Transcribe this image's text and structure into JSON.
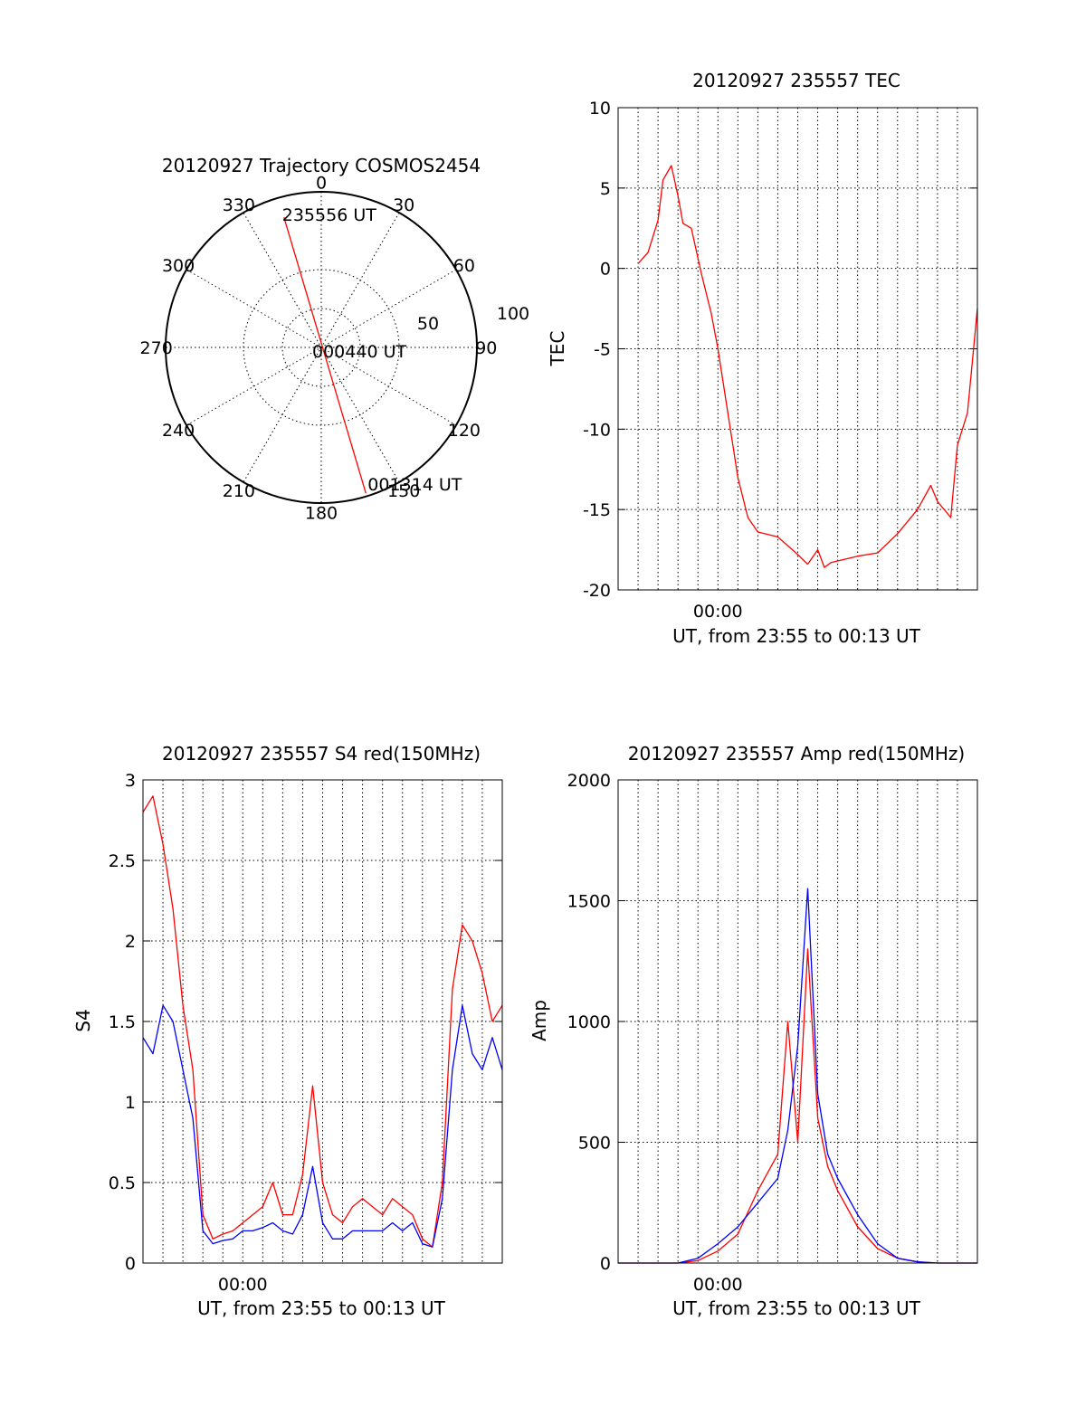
{
  "colors": {
    "red": "#ff0000",
    "blue": "#0000ff",
    "axis": "#000000",
    "grid": "#000000"
  },
  "chart_data": [
    {
      "id": "trajectory",
      "type": "polar",
      "title": "20120927 Trajectory COSMOS2454",
      "azimuth_labels": [
        "0",
        "30",
        "60",
        "90",
        "120",
        "150",
        "180",
        "210",
        "240",
        "270",
        "300",
        "330"
      ],
      "radius_labels": [
        "50",
        "100"
      ],
      "grid": true,
      "track": {
        "start": {
          "azimuth": 344,
          "zenith_angle": 87,
          "label": "235556 UT"
        },
        "middle": {
          "label": "000440 UT"
        },
        "end": {
          "azimuth": 163,
          "zenith_angle": 98,
          "label": "001314 UT"
        }
      }
    },
    {
      "id": "tec",
      "type": "line",
      "title": "20120927 235557 TEC",
      "ylabel": "TEC",
      "xlabel": "UT, from 23:55 to 00:13 UT",
      "x_tick_labels": [
        "00:00"
      ],
      "y_tick_labels": [
        "10",
        "5",
        "0",
        "-5",
        "-10",
        "-15",
        "-20"
      ],
      "xlim": [
        "23:55",
        "00:13"
      ],
      "ylim": [
        -20,
        10
      ],
      "grid": true,
      "series": [
        {
          "color": "#ff0000",
          "x": [
            "23:56",
            "23:56:30",
            "23:57",
            "23:57:15",
            "23:57:40",
            "23:58",
            "23:58:15",
            "23:58:40",
            "23:59:10",
            "23:59:40",
            "00:00",
            "00:00:30",
            "00:01",
            "00:01:30",
            "00:02",
            "00:03",
            "00:04",
            "00:04:30",
            "00:05",
            "00:05:20",
            "00:05:40",
            "00:06",
            "00:07",
            "00:08",
            "00:09",
            "00:10",
            "00:10:40",
            "00:11",
            "00:11:40",
            "00:12",
            "00:12:30",
            "00:13"
          ],
          "y": [
            0.3,
            1.0,
            3.0,
            5.5,
            6.4,
            4.5,
            2.8,
            2.5,
            -0.3,
            -2.8,
            -5.0,
            -9.0,
            -13.0,
            -15.5,
            -16.4,
            -16.7,
            -17.8,
            -18.4,
            -17.5,
            -18.6,
            -18.3,
            -18.2,
            -17.9,
            -17.7,
            -16.5,
            -15.0,
            -13.5,
            -14.5,
            -15.5,
            -11.0,
            -9.0,
            -2.5
          ]
        }
      ]
    },
    {
      "id": "s4",
      "type": "line",
      "title": "20120927 235557 S4 red(150MHz)",
      "ylabel": "S4",
      "xlabel": "UT, from 23:55 to 00:13 UT",
      "x_tick_labels": [
        "00:00"
      ],
      "y_tick_labels": [
        "3",
        "2.5",
        "2",
        "1.5",
        "1",
        "0.5",
        "0"
      ],
      "xlim": [
        "23:55",
        "00:13"
      ],
      "ylim": [
        0,
        3
      ],
      "grid": true,
      "series": [
        {
          "color": "#ff0000",
          "x": [
            "23:55",
            "23:55:30",
            "23:56",
            "23:56:30",
            "23:57",
            "23:57:30",
            "23:58",
            "23:58:30",
            "23:59",
            "23:59:30",
            "00:00",
            "00:00:30",
            "00:01",
            "00:01:30",
            "00:02",
            "00:02:30",
            "00:03",
            "00:03:30",
            "00:04",
            "00:04:30",
            "00:05",
            "00:05:30",
            "00:06",
            "00:06:30",
            "00:07",
            "00:07:30",
            "00:08",
            "00:08:30",
            "00:09",
            "00:09:30",
            "00:10",
            "00:10:30",
            "00:11",
            "00:11:30",
            "00:12",
            "00:12:30",
            "00:13"
          ],
          "y": [
            2.8,
            2.9,
            2.6,
            2.2,
            1.6,
            1.2,
            0.3,
            0.15,
            0.18,
            0.2,
            0.25,
            0.3,
            0.35,
            0.5,
            0.3,
            0.3,
            0.55,
            1.1,
            0.5,
            0.3,
            0.25,
            0.35,
            0.4,
            0.35,
            0.3,
            0.4,
            0.35,
            0.3,
            0.15,
            0.1,
            0.5,
            1.7,
            2.1,
            2.0,
            1.8,
            1.5,
            1.6
          ]
        },
        {
          "color": "#0000ff",
          "x": [
            "23:55",
            "23:55:30",
            "23:56",
            "23:56:30",
            "23:57",
            "23:57:30",
            "23:58",
            "23:58:30",
            "23:59",
            "23:59:30",
            "00:00",
            "00:00:30",
            "00:01",
            "00:01:30",
            "00:02",
            "00:02:30",
            "00:03",
            "00:03:30",
            "00:04",
            "00:04:30",
            "00:05",
            "00:05:30",
            "00:06",
            "00:06:30",
            "00:07",
            "00:07:30",
            "00:08",
            "00:08:30",
            "00:09",
            "00:09:30",
            "00:10",
            "00:10:30",
            "00:11",
            "00:11:30",
            "00:12",
            "00:12:30",
            "00:13"
          ],
          "y": [
            1.4,
            1.3,
            1.6,
            1.5,
            1.2,
            0.9,
            0.2,
            0.12,
            0.14,
            0.15,
            0.2,
            0.2,
            0.22,
            0.25,
            0.2,
            0.18,
            0.3,
            0.6,
            0.25,
            0.15,
            0.15,
            0.2,
            0.2,
            0.2,
            0.2,
            0.25,
            0.2,
            0.25,
            0.12,
            0.1,
            0.4,
            1.2,
            1.6,
            1.3,
            1.2,
            1.4,
            1.2
          ]
        }
      ]
    },
    {
      "id": "amp",
      "type": "line",
      "title": "20120927 235557 Amp red(150MHz)",
      "ylabel": "Amp",
      "xlabel": "UT, from 23:55 to 00:13 UT",
      "x_tick_labels": [
        "00:00"
      ],
      "y_tick_labels": [
        "2000",
        "1500",
        "1000",
        "500",
        "0"
      ],
      "xlim": [
        "23:55",
        "00:13"
      ],
      "ylim": [
        0,
        2000
      ],
      "grid": true,
      "series": [
        {
          "color": "#ff0000",
          "x": [
            "23:55",
            "23:56",
            "23:57",
            "23:58",
            "23:59",
            "00:00",
            "00:01",
            "00:02",
            "00:03",
            "00:03:30",
            "00:04",
            "00:04:30",
            "00:05",
            "00:05:30",
            "00:06",
            "00:07",
            "00:08",
            "00:09",
            "00:10",
            "00:11",
            "00:12",
            "00:13"
          ],
          "y": [
            0,
            0,
            0,
            0,
            10,
            50,
            120,
            300,
            450,
            1000,
            500,
            1300,
            600,
            400,
            300,
            150,
            60,
            20,
            5,
            0,
            0,
            0
          ]
        },
        {
          "color": "#0000ff",
          "x": [
            "23:55",
            "23:56",
            "23:57",
            "23:58",
            "23:59",
            "00:00",
            "00:01",
            "00:02",
            "00:03",
            "00:03:30",
            "00:04",
            "00:04:30",
            "00:05",
            "00:05:30",
            "00:06",
            "00:07",
            "00:08",
            "00:09",
            "00:10",
            "00:11",
            "00:12",
            "00:13"
          ],
          "y": [
            0,
            0,
            0,
            0,
            20,
            80,
            150,
            250,
            350,
            550,
            900,
            1550,
            700,
            450,
            350,
            200,
            80,
            20,
            5,
            0,
            0,
            0
          ]
        }
      ]
    }
  ]
}
